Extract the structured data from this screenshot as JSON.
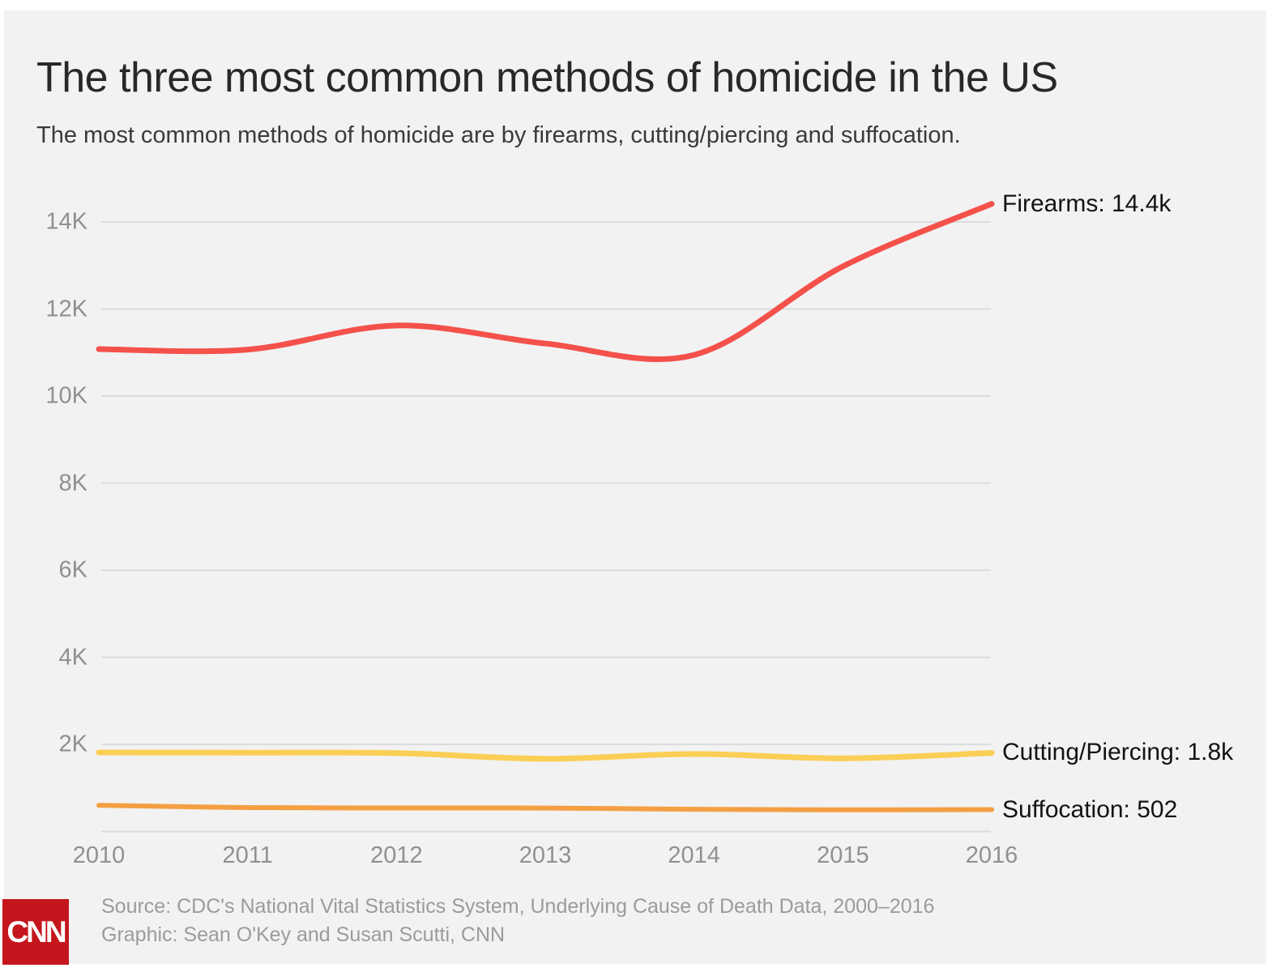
{
  "header": {
    "title": "The three most common methods of homicide in the US",
    "subtitle": "The most common methods of homicide are by firearms, cutting/piercing and suffocation."
  },
  "footer": {
    "source_line1": "Source: CDC's National Vital Statistics System, Underlying Cause of Death Data, 2000–2016",
    "source_line2": "Graphic: Sean O'Key and Susan Scutti, CNN",
    "logo_text": "CNN"
  },
  "colors": {
    "background": "#f2f2f2",
    "page": "#ffffff",
    "gridline": "#dcdcdc",
    "tick_text": "#909090",
    "title_text": "#282828",
    "label_text": "#131313",
    "source_text": "#9b9b9b",
    "cnn_red": "#c4161c",
    "firearms": "#f5514b",
    "cutting": "#fbce55",
    "suffocation": "#f49f42"
  },
  "chart_data": {
    "type": "line",
    "title": "The three most common methods of homicide in the US",
    "x": [
      2010,
      2011,
      2012,
      2013,
      2014,
      2015,
      2016
    ],
    "series": [
      {
        "name": "Firearms",
        "label": "Firearms: 14.4k",
        "color": "#f5514b",
        "stroke_width": 7,
        "values": [
          11078,
          11068,
          11622,
          11208,
          10945,
          12979,
          14415
        ]
      },
      {
        "name": "Cutting/Piercing",
        "label": "Cutting/Piercing: 1.8k",
        "color": "#fbce55",
        "stroke_width": 7,
        "values": [
          1815,
          1810,
          1800,
          1670,
          1780,
          1680,
          1805
        ]
      },
      {
        "name": "Suffocation",
        "label": "Suffocation: 502",
        "color": "#f49f42",
        "stroke_width": 6,
        "values": [
          601,
          548,
          540,
          538,
          510,
          497,
          502
        ]
      }
    ],
    "yticks": [
      {
        "value": 2000,
        "label": "2K"
      },
      {
        "value": 4000,
        "label": "4K"
      },
      {
        "value": 6000,
        "label": "6K"
      },
      {
        "value": 8000,
        "label": "8K"
      },
      {
        "value": 10000,
        "label": "10K"
      },
      {
        "value": 12000,
        "label": "12K"
      },
      {
        "value": 14000,
        "label": "14K"
      }
    ],
    "xlabel": "",
    "ylabel": "",
    "ylim": [
      0,
      14800
    ],
    "grid": true,
    "legend_position": "end-of-line-labels-right"
  }
}
